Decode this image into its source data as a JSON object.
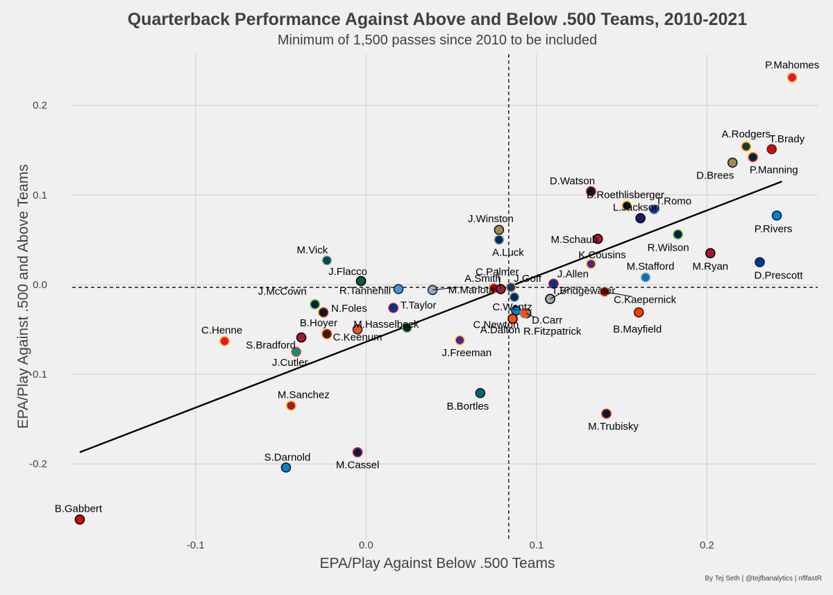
{
  "chart_data": {
    "type": "scatter",
    "title": "Quarterback Performance Against Above and Below .500 Teams, 2010-2021",
    "subtitle": "Minimum of 1,500 passes since 2010 to be included",
    "xlabel": "EPA/Play Against Below .500 Teams",
    "ylabel": "EPA/Play Against .500 and Above Teams",
    "caption": "By Tej Seth | @tejfbanalytics | nflfastR",
    "xlim": [
      -0.17,
      0.265
    ],
    "ylim": [
      -0.285,
      0.257
    ],
    "x_ticks": [
      {
        "v": -0.1,
        "label": "-0.1"
      },
      {
        "v": 0.0,
        "label": "0.0"
      },
      {
        "v": 0.1,
        "label": "0.1"
      },
      {
        "v": 0.2,
        "label": "0.2"
      }
    ],
    "y_ticks": [
      {
        "v": -0.2,
        "label": "-0.2"
      },
      {
        "v": -0.1,
        "label": "-0.1"
      },
      {
        "v": 0.0,
        "label": "0.0"
      },
      {
        "v": 0.1,
        "label": "0.1"
      },
      {
        "v": 0.2,
        "label": "0.2"
      }
    ],
    "grid": true,
    "vline_x": 0.0837,
    "hline_y": -0.003,
    "trend_line": {
      "x1": -0.168,
      "y1": -0.187,
      "x2": 0.244,
      "y2": 0.115
    },
    "points": [
      {
        "name": "P.Mahomes",
        "x": 0.25,
        "y": 0.231,
        "color": "#E31837",
        "edge": "#FFB81C"
      },
      {
        "name": "A.Rodgers",
        "x": 0.223,
        "y": 0.154,
        "color": "#203731",
        "edge": "#FFB612"
      },
      {
        "name": "T.Brady",
        "x": 0.238,
        "y": 0.151,
        "color": "#D50A0A",
        "edge": "#34302B"
      },
      {
        "name": "P.Manning",
        "x": 0.227,
        "y": 0.142,
        "color": "#002244",
        "edge": "#FB4F14"
      },
      {
        "name": "D.Brees",
        "x": 0.215,
        "y": 0.136,
        "color": "#9F8958",
        "edge": "#101820"
      },
      {
        "name": "D.Watson",
        "x": 0.132,
        "y": 0.104,
        "color": "#03202F",
        "edge": "#A71930"
      },
      {
        "name": "B.Roethlisberger",
        "x": 0.153,
        "y": 0.088,
        "color": "#101820",
        "edge": "#FFB612"
      },
      {
        "name": "T.Romo",
        "x": 0.169,
        "y": 0.084,
        "color": "#003594",
        "edge": "#869397"
      },
      {
        "name": "L.Jackson",
        "x": 0.161,
        "y": 0.074,
        "color": "#241773",
        "edge": "#000000"
      },
      {
        "name": "P.Rivers",
        "x": 0.241,
        "y": 0.077,
        "color": "#0080C6",
        "edge": "#002A5E"
      },
      {
        "name": "J.Winston",
        "x": 0.078,
        "y": 0.061,
        "color": "#9F8958",
        "edge": "#101820"
      },
      {
        "name": "R.Wilson",
        "x": 0.183,
        "y": 0.056,
        "color": "#002244",
        "edge": "#69BE28"
      },
      {
        "name": "M.Schaub",
        "x": 0.136,
        "y": 0.051,
        "color": "#A71930",
        "edge": "#000000"
      },
      {
        "name": "A.Luck",
        "x": 0.078,
        "y": 0.05,
        "color": "#002C5F",
        "edge": "#A2AAAD"
      },
      {
        "name": "M.Ryan",
        "x": 0.202,
        "y": 0.035,
        "color": "#A71930",
        "edge": "#000000"
      },
      {
        "name": "K.Cousins",
        "x": 0.132,
        "y": 0.023,
        "color": "#4F2683",
        "edge": "#FFC62F"
      },
      {
        "name": "M.Vick",
        "x": -0.023,
        "y": 0.027,
        "color": "#004C54",
        "edge": "#A5ACAF"
      },
      {
        "name": "D.Prescott",
        "x": 0.231,
        "y": 0.025,
        "color": "#003594",
        "edge": "#041E42"
      },
      {
        "name": "M.Stafford",
        "x": 0.164,
        "y": 0.008,
        "color": "#0076B6",
        "edge": "#B0B7BC"
      },
      {
        "name": "J.Flacco",
        "x": -0.003,
        "y": 0.004,
        "color": "#125740",
        "edge": "#000000"
      },
      {
        "name": "J.Allen",
        "x": 0.11,
        "y": 0.001,
        "color": "#00338D",
        "edge": "#C60C30"
      },
      {
        "name": "R.Tannehill",
        "x": 0.019,
        "y": -0.005,
        "color": "#4B92DB",
        "edge": "#0C2340"
      },
      {
        "name": "M.Mariota",
        "x": 0.039,
        "y": -0.006,
        "color": "#A2AAAD",
        "edge": "#002C5F"
      },
      {
        "name": "A.Smith",
        "x": 0.075,
        "y": -0.004,
        "color": "#AA0000",
        "edge": "#B3995D"
      },
      {
        "name": "C.Palmer",
        "x": 0.079,
        "y": -0.005,
        "color": "#97233F",
        "edge": "#000000"
      },
      {
        "name": "J.Goff",
        "x": 0.085,
        "y": -0.003,
        "color": "#003594",
        "edge": "#FFA300"
      },
      {
        "name": "C.Wentz",
        "x": 0.087,
        "y": -0.014,
        "color": "#002C5F",
        "edge": "#A2AAAD"
      },
      {
        "name": "T.Bridgewater",
        "x": 0.108,
        "y": -0.016,
        "color": "#A5ACAF",
        "edge": "#000000"
      },
      {
        "name": "C.Kaepernick",
        "x": 0.14,
        "y": -0.008,
        "color": "#AA0000",
        "edge": "#B3995D"
      },
      {
        "name": "J.McCown",
        "x": -0.03,
        "y": -0.022,
        "color": "#002244",
        "edge": "#69BE28"
      },
      {
        "name": "T.Taylor",
        "x": 0.016,
        "y": -0.026,
        "color": "#00338D",
        "edge": "#C60C30"
      },
      {
        "name": "N.Foles",
        "x": -0.025,
        "y": -0.031,
        "color": "#0B162A",
        "edge": "#C83803"
      },
      {
        "name": "C.Newton",
        "x": 0.088,
        "y": -0.029,
        "color": "#0085CA",
        "edge": "#101820"
      },
      {
        "name": "D.Carr",
        "x": 0.094,
        "y": -0.032,
        "color": "#A5ACAF",
        "edge": "#000000"
      },
      {
        "name": "B.Mayfield",
        "x": 0.16,
        "y": -0.031,
        "color": "#FF3C00",
        "edge": "#311D00"
      },
      {
        "name": "A.Dalton",
        "x": 0.086,
        "y": -0.038,
        "color": "#FB4F14",
        "edge": "#000000"
      },
      {
        "name": "M.Hasselbeck",
        "x": 0.024,
        "y": -0.048,
        "color": "#002244",
        "edge": "#69BE28"
      },
      {
        "name": "C.Keenum",
        "x": -0.005,
        "y": -0.05,
        "color": "#FB4F14",
        "edge": "#002244"
      },
      {
        "name": "B.Hoyer",
        "x": -0.023,
        "y": -0.055,
        "color": "#311D00",
        "edge": "#FF3C00"
      },
      {
        "name": "R.Fitzpatrick",
        "x": 0.093,
        "y": -0.032,
        "color": "#FB4F14",
        "edge": "#8B8B8B"
      },
      {
        "name": "S.Bradford",
        "x": -0.038,
        "y": -0.059,
        "color": "#A71930",
        "edge": "#000000"
      },
      {
        "name": "C.Henne",
        "x": -0.083,
        "y": -0.063,
        "color": "#E31837",
        "edge": "#FFB81C"
      },
      {
        "name": "J.Freeman",
        "x": 0.055,
        "y": -0.062,
        "color": "#4F2683",
        "edge": "#FFC62F"
      },
      {
        "name": "J.Cutler",
        "x": -0.041,
        "y": -0.075,
        "color": "#008E97",
        "edge": "#FC4C02"
      },
      {
        "name": "B.Bortles",
        "x": 0.067,
        "y": -0.121,
        "color": "#006778",
        "edge": "#101820"
      },
      {
        "name": "M.Sanchez",
        "x": -0.044,
        "y": -0.135,
        "color": "#A71930",
        "edge": "#FFB612"
      },
      {
        "name": "M.Trubisky",
        "x": 0.141,
        "y": -0.144,
        "color": "#0B162A",
        "edge": "#C83803"
      },
      {
        "name": "M.Cassel",
        "x": -0.005,
        "y": -0.187,
        "color": "#002244",
        "edge": "#E31837"
      },
      {
        "name": "S.Darnold",
        "x": -0.047,
        "y": -0.204,
        "color": "#0085CA",
        "edge": "#101820"
      },
      {
        "name": "B.Gabbert",
        "x": -0.168,
        "y": -0.262,
        "color": "#D50A0A",
        "edge": "#000000"
      }
    ]
  }
}
